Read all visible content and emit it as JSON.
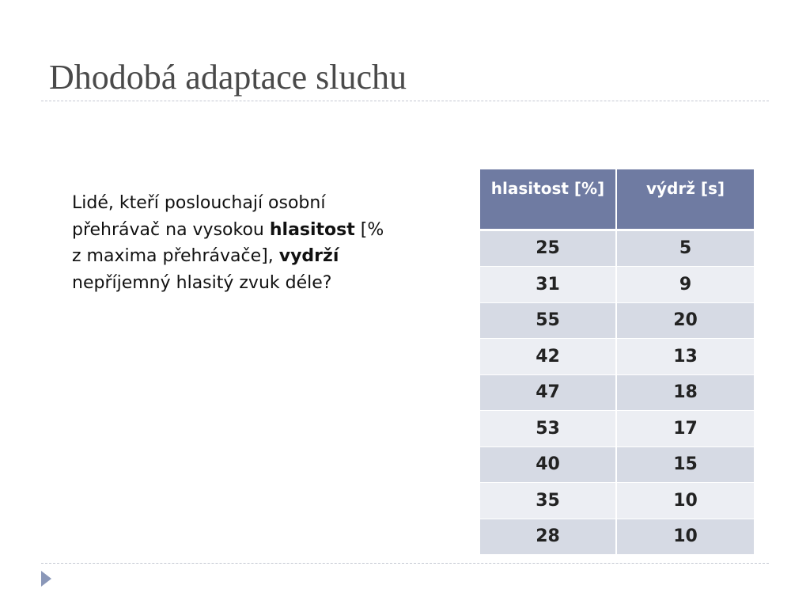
{
  "slide": {
    "title": "Dhodobá adaptace sluchu",
    "body": {
      "part1": "Lidé, kteří poslouchají osobní přehrávač na vysokou ",
      "bold1": "hlasitost",
      "part2": " [% z maxima přehrávače], ",
      "bold2": "vydrží",
      "part3": " nepříjemný hlasitý zvuk déle?"
    },
    "table": {
      "headers": [
        "hlasitost [%]",
        "výdrž [s]"
      ],
      "rows": [
        [
          "25",
          "5"
        ],
        [
          "31",
          "9"
        ],
        [
          "55",
          "20"
        ],
        [
          "42",
          "13"
        ],
        [
          "47",
          "18"
        ],
        [
          "53",
          "17"
        ],
        [
          "40",
          "15"
        ],
        [
          "35",
          "10"
        ],
        [
          "28",
          "10"
        ]
      ]
    }
  },
  "colors": {
    "header_bg": "#6f7ba2",
    "row_odd_bg": "#d6dae4",
    "row_even_bg": "#eceef3",
    "title_color": "#4a4a4a",
    "arrow_color": "#8a97b8"
  },
  "icons": {
    "nav_arrow": "play-triangle-icon"
  }
}
